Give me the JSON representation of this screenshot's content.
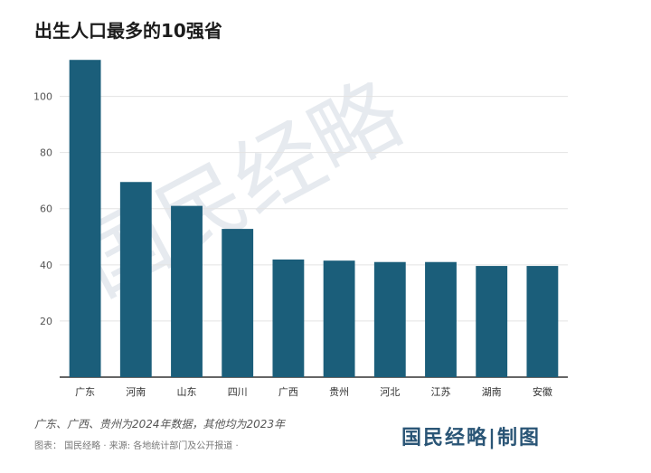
{
  "title": "出生人口最多的10强省",
  "note": "广东、广西、贵州为2024年数据，其他均为2023年",
  "source": "图表： 国民经略 · 来源: 各地统计部门及公开报道 ·",
  "brand": "国民经略|制图",
  "watermark": "国民经略",
  "colors": {
    "bar": "#1b5e7a",
    "grid": "#e3e3e3",
    "axis": "#333333"
  },
  "chart_data": {
    "type": "bar",
    "categories": [
      "广东",
      "河南",
      "山东",
      "四川",
      "广西",
      "贵州",
      "河北",
      "江苏",
      "湖南",
      "安徽"
    ],
    "values": [
      113,
      69.5,
      61,
      52.8,
      41.9,
      41.5,
      41,
      41,
      39.6,
      39.6
    ],
    "yticks": [
      20,
      40,
      60,
      80,
      100
    ],
    "ylim": [
      0,
      115
    ],
    "grid": true,
    "xlabel": "",
    "ylabel": ""
  }
}
